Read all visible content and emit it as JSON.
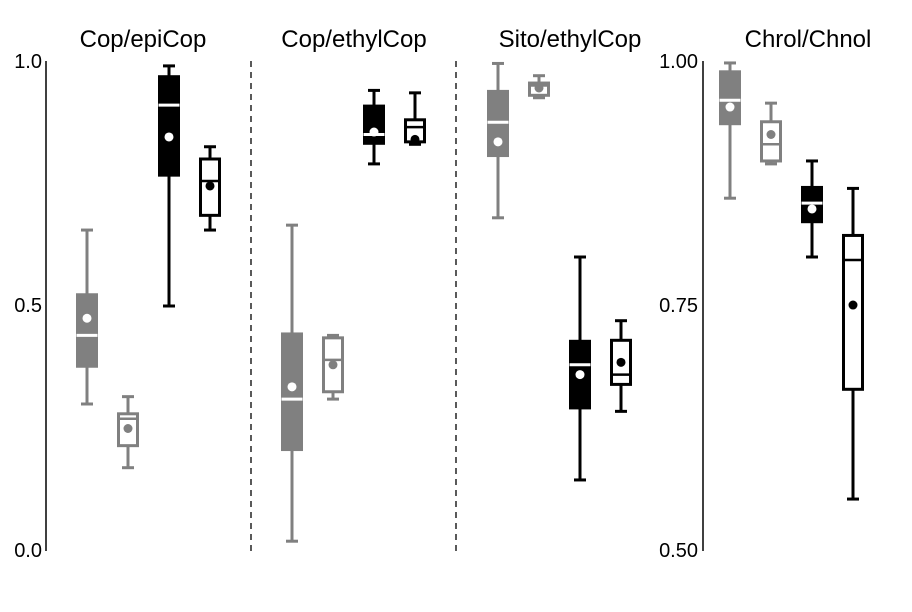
{
  "chart_data": [
    {
      "type": "box",
      "title": "Cop/epiCop",
      "ylim": [
        0,
        1
      ],
      "y_ticks": [
        "0.0",
        "0.5",
        "1.0"
      ],
      "series": [
        {
          "style": "gray-filled",
          "whisker_low": 0.3,
          "q1": 0.375,
          "median": 0.44,
          "q3": 0.525,
          "whisker_high": 0.655,
          "mean": 0.475
        },
        {
          "style": "gray-outline",
          "whisker_low": 0.17,
          "q1": 0.215,
          "median": 0.27,
          "q3": 0.28,
          "whisker_high": 0.315,
          "mean": 0.25
        },
        {
          "style": "black-filled",
          "whisker_low": 0.5,
          "q1": 0.765,
          "median": 0.91,
          "q3": 0.97,
          "whisker_high": 0.99,
          "mean": 0.845
        },
        {
          "style": "black-outline",
          "whisker_low": 0.655,
          "q1": 0.685,
          "median": 0.755,
          "q3": 0.8,
          "whisker_high": 0.825,
          "mean": 0.745
        }
      ]
    },
    {
      "type": "box",
      "title": "Cop/ethylCop",
      "ylim": [
        0,
        1
      ],
      "series": [
        {
          "style": "gray-filled",
          "whisker_low": 0.02,
          "q1": 0.205,
          "median": 0.31,
          "q3": 0.445,
          "whisker_high": 0.665,
          "mean": 0.335
        },
        {
          "style": "gray-outline",
          "whisker_low": 0.31,
          "q1": 0.325,
          "median": 0.39,
          "q3": 0.435,
          "whisker_high": 0.44,
          "mean": 0.38
        },
        {
          "style": "black-filled",
          "whisker_low": 0.79,
          "q1": 0.83,
          "median": 0.85,
          "q3": 0.91,
          "whisker_high": 0.94,
          "mean": 0.855
        },
        {
          "style": "black-outline",
          "whisker_low": 0.83,
          "q1": 0.835,
          "median": 0.865,
          "q3": 0.88,
          "whisker_high": 0.935,
          "mean": 0.84
        }
      ]
    },
    {
      "type": "box",
      "title": "Sito/ethylCop",
      "ylim": [
        0,
        1
      ],
      "series": [
        {
          "style": "gray-filled",
          "whisker_low": 0.68,
          "q1": 0.805,
          "median": 0.875,
          "q3": 0.94,
          "whisker_high": 0.995,
          "mean": 0.835
        },
        {
          "style": "gray-outline",
          "whisker_low": 0.925,
          "q1": 0.93,
          "median": 0.95,
          "q3": 0.955,
          "whisker_high": 0.97,
          "mean": 0.945
        },
        {
          "style": "black-filled",
          "whisker_low": 0.145,
          "q1": 0.29,
          "median": 0.38,
          "q3": 0.43,
          "whisker_high": 0.6,
          "mean": 0.36
        },
        {
          "style": "black-outline",
          "whisker_low": 0.285,
          "q1": 0.34,
          "median": 0.36,
          "q3": 0.43,
          "whisker_high": 0.47,
          "mean": 0.385
        }
      ]
    },
    {
      "type": "box",
      "title": "Chrol/Chnol",
      "ylim": [
        0.5,
        1.0
      ],
      "y_ticks": [
        "0.50",
        "0.75",
        "1.00"
      ],
      "series": [
        {
          "style": "gray-filled",
          "whisker_low": 0.86,
          "q1": 0.935,
          "median": 0.96,
          "q3": 0.99,
          "whisker_high": 0.998,
          "mean": 0.953
        },
        {
          "style": "gray-outline",
          "whisker_low": 0.895,
          "q1": 0.898,
          "median": 0.915,
          "q3": 0.938,
          "whisker_high": 0.957,
          "mean": 0.925
        },
        {
          "style": "black-filled",
          "whisker_low": 0.8,
          "q1": 0.835,
          "median": 0.855,
          "q3": 0.872,
          "whisker_high": 0.898,
          "mean": 0.849
        },
        {
          "style": "black-outline",
          "whisker_low": 0.553,
          "q1": 0.665,
          "median": 0.797,
          "q3": 0.822,
          "whisker_high": 0.87,
          "mean": 0.751
        }
      ]
    }
  ]
}
